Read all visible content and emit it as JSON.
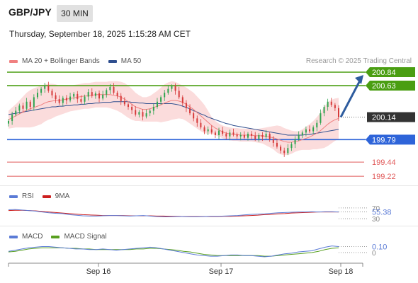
{
  "header": {
    "symbol": "GBP/JPY",
    "timeframe": "30 MIN",
    "datetime": "Thursday, September 18, 2025 1:15:28 AM CET"
  },
  "legend": {
    "ma20_label": "MA 20 + Bollinger Bands",
    "ma50_label": "MA 50",
    "rsi_label": "RSI",
    "rsi_ma_label": "9MA",
    "macd_label": "MACD",
    "macd_signal_label": "MACD Signal"
  },
  "watermark": "Research © 2025 Trading Central",
  "colors": {
    "candle_up": "#2ea44f",
    "candle_down": "#d63a3a",
    "ma20": "#f08080",
    "ma50": "#2f4f8f",
    "band_fill": "#fbdcdc",
    "resistance": "#4a9e12",
    "pivot": "#2e64d9",
    "support": "#e15a5a",
    "last_price": "#333333",
    "arrow": "#2e5c9e",
    "rsi": "#5b7bd6",
    "rsi_ma": "#cc1f1f",
    "macd": "#5b7bd6",
    "macd_signal": "#58a020"
  },
  "chart_data": [
    {
      "type": "candlestick",
      "title": "GBP/JPY",
      "x_ticks": [
        "Sep 16",
        "Sep 17",
        "Sep 18"
      ],
      "ylim": [
        199.1,
        200.95
      ],
      "last_price": 200.14,
      "levels": [
        {
          "kind": "resistance",
          "value": 200.84,
          "label": "200.84"
        },
        {
          "kind": "resistance",
          "value": 200.63,
          "label": "200.63"
        },
        {
          "kind": "last",
          "value": 200.14,
          "label": "200.14"
        },
        {
          "kind": "pivot",
          "value": 199.79,
          "label": "199.79"
        },
        {
          "kind": "support",
          "value": 199.44,
          "label": "199.44"
        },
        {
          "kind": "support",
          "value": 199.22,
          "label": "199.22"
        }
      ],
      "close": [
        200.08,
        200.18,
        200.24,
        200.32,
        200.27,
        200.38,
        200.3,
        200.45,
        200.52,
        200.58,
        200.63,
        200.55,
        200.48,
        200.42,
        200.36,
        200.44,
        200.4,
        200.46,
        200.5,
        200.42,
        200.38,
        200.46,
        200.53,
        200.47,
        200.51,
        200.43,
        200.49,
        200.56,
        200.61,
        200.52,
        200.47,
        200.39,
        200.34,
        200.3,
        200.25,
        200.18,
        200.22,
        200.15,
        200.2,
        200.24,
        200.3,
        200.38,
        200.45,
        200.52,
        200.58,
        200.62,
        200.55,
        200.45,
        200.36,
        200.28,
        200.2,
        200.12,
        200.05,
        199.98,
        199.92,
        199.95,
        199.9,
        199.86,
        199.93,
        199.88,
        199.84,
        199.9,
        199.87,
        199.84,
        199.86,
        199.82,
        199.88,
        199.85,
        199.8,
        199.86,
        199.83,
        199.88,
        199.8,
        199.74,
        199.68,
        199.62,
        199.58,
        199.66,
        199.72,
        199.8,
        199.86,
        199.9,
        199.95,
        199.92,
        199.98,
        200.05,
        200.2,
        200.3,
        200.38,
        200.33,
        200.28,
        200.14
      ],
      "ma20": [
        200.1,
        200.13,
        200.16,
        200.19,
        200.22,
        200.25,
        200.27,
        200.29,
        200.31,
        200.33,
        200.36,
        200.38,
        200.39,
        200.4,
        200.4,
        200.41,
        200.42,
        200.43,
        200.44,
        200.45,
        200.46,
        200.47,
        200.47,
        200.48,
        200.49,
        200.49,
        200.49,
        200.49,
        200.49,
        200.48,
        200.47,
        200.45,
        200.42,
        200.38,
        200.34,
        200.3,
        200.28,
        200.26,
        200.26,
        200.27,
        200.29,
        200.31,
        200.33,
        200.36,
        200.38,
        200.4,
        200.4,
        200.39,
        200.37,
        200.34,
        200.3,
        200.26,
        200.21,
        200.16,
        200.11,
        200.06,
        200.01,
        199.97,
        199.94,
        199.91,
        199.89,
        199.88,
        199.87,
        199.87,
        199.86,
        199.86,
        199.86,
        199.86,
        199.85,
        199.85,
        199.85,
        199.84,
        199.83,
        199.82,
        199.8,
        199.78,
        199.76,
        199.75,
        199.75,
        199.76,
        199.77,
        199.79,
        199.81,
        199.83,
        199.86,
        199.89,
        199.93,
        199.98,
        200.03,
        200.07,
        200.1,
        200.12
      ],
      "ma50": [
        200.18,
        200.19,
        200.2,
        200.21,
        200.22,
        200.23,
        200.24,
        200.25,
        200.26,
        200.27,
        200.28,
        200.29,
        200.3,
        200.3,
        200.31,
        200.31,
        200.32,
        200.32,
        200.33,
        200.33,
        200.34,
        200.34,
        200.35,
        200.35,
        200.36,
        200.36,
        200.37,
        200.37,
        200.37,
        200.38,
        200.38,
        200.38,
        200.38,
        200.38,
        200.37,
        200.37,
        200.36,
        200.36,
        200.35,
        200.35,
        200.35,
        200.35,
        200.35,
        200.35,
        200.35,
        200.35,
        200.34,
        200.33,
        200.31,
        200.29,
        200.27,
        200.24,
        200.22,
        200.19,
        200.17,
        200.14,
        200.12,
        200.1,
        200.08,
        200.06,
        200.04,
        200.03,
        200.01,
        200.0,
        199.99,
        199.98,
        199.97,
        199.96,
        199.95,
        199.94,
        199.93,
        199.92,
        199.91,
        199.9,
        199.89,
        199.88,
        199.87,
        199.86,
        199.86,
        199.86,
        199.86,
        199.86,
        199.87,
        199.87,
        199.88,
        199.89,
        199.9,
        199.91,
        199.92,
        199.93,
        199.94,
        199.95
      ],
      "bb_width": [
        0.14,
        0.16,
        0.18,
        0.21,
        0.24,
        0.27,
        0.29,
        0.3,
        0.3,
        0.3,
        0.29,
        0.28,
        0.27,
        0.25,
        0.23,
        0.22,
        0.21,
        0.2,
        0.2,
        0.2,
        0.2,
        0.2,
        0.2,
        0.2,
        0.2,
        0.2,
        0.2,
        0.2,
        0.21,
        0.22,
        0.23,
        0.24,
        0.25,
        0.25,
        0.24,
        0.22,
        0.2,
        0.19,
        0.19,
        0.2,
        0.22,
        0.24,
        0.27,
        0.29,
        0.3,
        0.3,
        0.29,
        0.27,
        0.26,
        0.26,
        0.26,
        0.26,
        0.25,
        0.24,
        0.22,
        0.18,
        0.13,
        0.11,
        0.1,
        0.1,
        0.1,
        0.1,
        0.1,
        0.1,
        0.1,
        0.1,
        0.1,
        0.1,
        0.1,
        0.11,
        0.12,
        0.14,
        0.16,
        0.18,
        0.21,
        0.22,
        0.21,
        0.2,
        0.18,
        0.16,
        0.15,
        0.16,
        0.18,
        0.2,
        0.22,
        0.25,
        0.28,
        0.32,
        0.34,
        0.34,
        0.33,
        0.32
      ]
    },
    {
      "type": "line",
      "title": "RSI",
      "ylim": [
        0,
        100
      ],
      "ticks": [
        30,
        70
      ],
      "last_value": 55.38,
      "last_label": "55.38",
      "series": [
        {
          "name": "RSI",
          "values": [
            63,
            64,
            62,
            60,
            58,
            55,
            52,
            50,
            49,
            45,
            43,
            41,
            40,
            40,
            41,
            42,
            42,
            41,
            40,
            41,
            42,
            40,
            38,
            37,
            37,
            38,
            38,
            37,
            37,
            38,
            39,
            39,
            40,
            41,
            42,
            44,
            46,
            47,
            48,
            50,
            52,
            53,
            54,
            55,
            55,
            56,
            55,
            56,
            56,
            55
          ]
        },
        {
          "name": "9MA",
          "values": [
            60,
            61,
            61,
            60,
            59,
            57,
            55,
            53,
            51,
            49,
            47,
            45,
            44,
            43,
            42,
            42,
            42,
            42,
            41,
            41,
            41,
            41,
            40,
            40,
            39,
            39,
            38,
            38,
            38,
            38,
            38,
            38,
            39,
            39,
            40,
            41,
            42,
            43,
            45,
            46,
            48,
            49,
            51,
            52,
            53,
            54,
            55,
            55,
            55,
            55
          ]
        }
      ]
    },
    {
      "type": "line",
      "title": "MACD",
      "ticks": [
        0
      ],
      "last_value": 0.1,
      "last_label": "0.10",
      "series": [
        {
          "name": "MACD",
          "values": [
            0.02,
            0.04,
            0.06,
            0.08,
            0.09,
            0.1,
            0.1,
            0.09,
            0.08,
            0.07,
            0.06,
            0.06,
            0.05,
            0.05,
            0.06,
            0.05,
            0.04,
            0.05,
            0.06,
            0.07,
            0.08,
            0.09,
            0.08,
            0.06,
            0.04,
            0.02,
            0.0,
            -0.02,
            -0.04,
            -0.05,
            -0.06,
            -0.06,
            -0.05,
            -0.04,
            -0.04,
            -0.05,
            -0.05,
            -0.06,
            -0.07,
            -0.06,
            -0.04,
            -0.02,
            -0.01,
            0.01,
            0.02,
            0.03,
            0.06,
            0.09,
            0.11,
            0.1
          ]
        },
        {
          "name": "MACD Signal",
          "values": [
            0.01,
            0.02,
            0.04,
            0.06,
            0.07,
            0.08,
            0.08,
            0.08,
            0.08,
            0.07,
            0.07,
            0.06,
            0.06,
            0.05,
            0.05,
            0.05,
            0.05,
            0.05,
            0.05,
            0.06,
            0.06,
            0.07,
            0.07,
            0.06,
            0.05,
            0.04,
            0.02,
            0.01,
            -0.01,
            -0.03,
            -0.04,
            -0.05,
            -0.05,
            -0.05,
            -0.05,
            -0.05,
            -0.05,
            -0.05,
            -0.06,
            -0.06,
            -0.05,
            -0.04,
            -0.03,
            -0.02,
            -0.01,
            0.0,
            0.02,
            0.05,
            0.07,
            0.08
          ]
        }
      ]
    }
  ]
}
